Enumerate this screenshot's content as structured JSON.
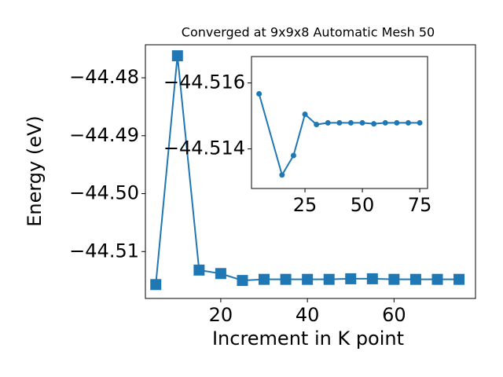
{
  "chart_data": [
    {
      "type": "line",
      "title": "Converged at 9x9x8 Automatic Mesh 50",
      "x_label": "Increment in K point",
      "y_label": "Energy (eV)",
      "x": [
        5,
        10,
        15,
        20,
        25,
        30,
        35,
        40,
        45,
        50,
        55,
        60,
        65,
        70,
        75
      ],
      "series": [
        {
          "color": "#1f77b4",
          "marker": "square",
          "values": [
            -44.5157,
            -44.4762,
            -44.5132,
            -44.5138,
            -44.515,
            -44.5148,
            -44.5148,
            -44.5148,
            -44.5148,
            -44.5147,
            -44.5147,
            -44.5148,
            -44.5148,
            -44.5148,
            -44.5148
          ]
        }
      ],
      "xlim": [
        2.6,
        78.8
      ],
      "ylim": [
        -44.5181,
        -44.4743
      ],
      "xticks": [
        20,
        40,
        60
      ],
      "yticks": [
        {
          "value": -44.51,
          "label": "−44.51"
        },
        {
          "value": -44.5,
          "label": "−44.50"
        },
        {
          "value": -44.49,
          "label": "−44.49"
        },
        {
          "value": -44.48,
          "label": "−44.48"
        }
      ]
    },
    {
      "type": "line",
      "x": [
        5,
        15,
        20,
        25,
        30,
        35,
        40,
        45,
        50,
        55,
        60,
        65,
        70,
        75
      ],
      "series": [
        {
          "color": "#1f77b4",
          "marker": "circle",
          "values": [
            -44.51567,
            -44.51321,
            -44.5138,
            -44.51505,
            -44.51474,
            -44.51479,
            -44.51479,
            -44.51479,
            -44.51479,
            -44.51476,
            -44.51479,
            -44.51479,
            -44.51479,
            -44.51479
          ]
        }
      ],
      "xlim": [
        1.7,
        78.4
      ],
      "ylim": [
        -44.5128,
        -44.5168
      ],
      "xticks": [
        25,
        50,
        75
      ],
      "yticks": [
        {
          "value": -44.516,
          "label": "−44.516"
        },
        {
          "value": -44.514,
          "label": "−44.514"
        }
      ]
    }
  ]
}
